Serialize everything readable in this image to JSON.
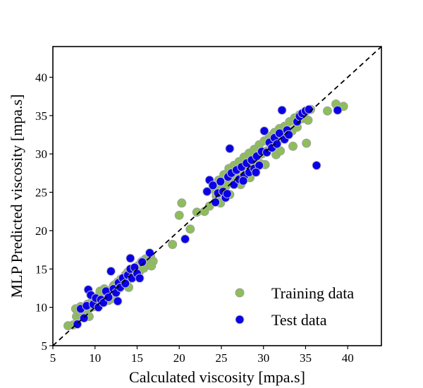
{
  "chart_data": {
    "type": "scatter",
    "title": "",
    "xlabel": "Calculated viscosity [mpa.s]",
    "ylabel": "MLP Predicted viscosity [mpa.s]",
    "xlim": [
      5,
      44
    ],
    "ylim": [
      5,
      44
    ],
    "xticks": [
      5,
      10,
      15,
      20,
      25,
      30,
      35,
      40
    ],
    "yticks": [
      5,
      10,
      15,
      20,
      25,
      30,
      35,
      40
    ],
    "grid": false,
    "legend_position": "bottom-right",
    "reference_line": {
      "style": "dashed",
      "color": "#000000",
      "from": [
        5,
        5
      ],
      "to": [
        44,
        44
      ]
    },
    "series": [
      {
        "name": "Training data",
        "color": "#8dbe5a",
        "edge_color": "#a0a0a0",
        "points": [
          [
            6.8,
            7.6
          ],
          [
            7.4,
            7.7
          ],
          [
            7.8,
            8.8
          ],
          [
            7.7,
            9.8
          ],
          [
            8.1,
            9.3
          ],
          [
            8.3,
            10.1
          ],
          [
            8.6,
            9.2
          ],
          [
            8.9,
            9.6
          ],
          [
            9.1,
            10.4
          ],
          [
            9.4,
            9.9
          ],
          [
            9.7,
            10.8
          ],
          [
            9.9,
            10.1
          ],
          [
            10.2,
            11.3
          ],
          [
            10.4,
            10.5
          ],
          [
            10.7,
            11.9
          ],
          [
            10.9,
            11.0
          ],
          [
            11.1,
            12.4
          ],
          [
            11.3,
            11.6
          ],
          [
            11.6,
            10.9
          ],
          [
            11.8,
            12.2
          ],
          [
            12.0,
            11.5
          ],
          [
            12.2,
            12.8
          ],
          [
            12.5,
            12.1
          ],
          [
            12.7,
            13.3
          ],
          [
            12.9,
            12.5
          ],
          [
            13.1,
            13.7
          ],
          [
            13.3,
            12.9
          ],
          [
            13.6,
            14.2
          ],
          [
            13.8,
            13.4
          ],
          [
            14.0,
            12.6
          ],
          [
            14.2,
            14.5
          ],
          [
            14.4,
            13.8
          ],
          [
            14.6,
            15.0
          ],
          [
            14.9,
            14.3
          ],
          [
            15.1,
            15.4
          ],
          [
            15.3,
            14.7
          ],
          [
            15.5,
            15.9
          ],
          [
            15.8,
            15.1
          ],
          [
            16.0,
            16.3
          ],
          [
            16.3,
            15.5
          ],
          [
            16.6,
            16.6
          ],
          [
            16.9,
            16.0
          ],
          [
            16.7,
            15.4
          ],
          [
            12.3,
            12.9
          ],
          [
            8.5,
            9.0
          ],
          [
            9.3,
            8.8
          ],
          [
            10.6,
            12.1
          ],
          [
            13.9,
            14.6
          ],
          [
            15.6,
            16.0
          ],
          [
            11.9,
            11.1
          ],
          [
            19.2,
            18.2
          ],
          [
            20.0,
            22.0
          ],
          [
            20.3,
            23.6
          ],
          [
            21.3,
            20.2
          ],
          [
            22.1,
            22.4
          ],
          [
            23.0,
            22.5
          ],
          [
            23.6,
            23.2
          ],
          [
            24.0,
            25.4
          ],
          [
            24.4,
            24.5
          ],
          [
            24.7,
            26.6
          ],
          [
            25.0,
            25.5
          ],
          [
            25.3,
            27.3
          ],
          [
            25.6,
            25.9
          ],
          [
            25.9,
            28.1
          ],
          [
            26.2,
            26.7
          ],
          [
            26.5,
            28.5
          ],
          [
            26.8,
            27.1
          ],
          [
            27.1,
            29.0
          ],
          [
            27.4,
            27.6
          ],
          [
            27.7,
            29.6
          ],
          [
            28.0,
            28.2
          ],
          [
            28.3,
            30.1
          ],
          [
            28.6,
            28.8
          ],
          [
            28.9,
            30.6
          ],
          [
            29.2,
            29.3
          ],
          [
            29.5,
            31.2
          ],
          [
            29.8,
            30.0
          ],
          [
            30.1,
            31.7
          ],
          [
            30.4,
            30.4
          ],
          [
            30.7,
            32.3
          ],
          [
            31.0,
            31.0
          ],
          [
            31.3,
            32.8
          ],
          [
            31.6,
            31.4
          ],
          [
            31.9,
            33.3
          ],
          [
            32.2,
            32.0
          ],
          [
            32.5,
            33.6
          ],
          [
            32.8,
            32.5
          ],
          [
            33.1,
            34.2
          ],
          [
            33.4,
            33.0
          ],
          [
            33.7,
            34.7
          ],
          [
            34.0,
            33.5
          ],
          [
            34.3,
            35.1
          ],
          [
            34.6,
            34.6
          ],
          [
            35.0,
            35.5
          ],
          [
            35.3,
            34.4
          ],
          [
            35.6,
            35.8
          ],
          [
            35.1,
            31.4
          ],
          [
            37.6,
            35.6
          ],
          [
            38.6,
            36.5
          ],
          [
            39.5,
            36.2
          ],
          [
            28.4,
            26.9
          ],
          [
            29.0,
            29.1
          ],
          [
            30.2,
            28.6
          ],
          [
            31.5,
            29.9
          ],
          [
            26.0,
            24.7
          ],
          [
            27.3,
            26.0
          ],
          [
            24.9,
            23.6
          ],
          [
            33.5,
            31.0
          ],
          [
            32.0,
            30.4
          ],
          [
            29.7,
            28.7
          ]
        ]
      },
      {
        "name": "Test data",
        "color": "#0a00e6",
        "edge_color": "#c0c0c0",
        "points": [
          [
            7.9,
            7.8
          ],
          [
            8.3,
            9.8
          ],
          [
            8.7,
            8.6
          ],
          [
            9.0,
            10.2
          ],
          [
            9.2,
            12.3
          ],
          [
            9.5,
            11.6
          ],
          [
            9.8,
            10.4
          ],
          [
            10.1,
            11.2
          ],
          [
            10.4,
            10.0
          ],
          [
            10.7,
            11.0
          ],
          [
            11.0,
            10.6
          ],
          [
            11.3,
            12.1
          ],
          [
            11.6,
            11.3
          ],
          [
            11.9,
            14.7
          ],
          [
            12.2,
            12.4
          ],
          [
            12.5,
            11.9
          ],
          [
            12.8,
            13.2
          ],
          [
            13.0,
            12.6
          ],
          [
            13.3,
            13.8
          ],
          [
            13.6,
            13.1
          ],
          [
            13.9,
            14.2
          ],
          [
            14.2,
            15.0
          ],
          [
            14.4,
            13.8
          ],
          [
            14.7,
            15.2
          ],
          [
            15.0,
            14.4
          ],
          [
            15.3,
            13.8
          ],
          [
            15.6,
            15.9
          ],
          [
            16.5,
            17.1
          ],
          [
            14.2,
            16.4
          ],
          [
            12.7,
            10.8
          ],
          [
            20.7,
            18.9
          ],
          [
            23.3,
            25.1
          ],
          [
            23.6,
            26.6
          ],
          [
            24.0,
            25.9
          ],
          [
            24.3,
            23.7
          ],
          [
            24.6,
            24.9
          ],
          [
            24.9,
            26.4
          ],
          [
            25.2,
            25.1
          ],
          [
            25.5,
            24.3
          ],
          [
            25.8,
            27.0
          ],
          [
            26.0,
            30.7
          ],
          [
            26.2,
            27.5
          ],
          [
            26.5,
            26.0
          ],
          [
            26.8,
            27.9
          ],
          [
            27.1,
            26.7
          ],
          [
            27.4,
            28.3
          ],
          [
            27.7,
            27.1
          ],
          [
            28.0,
            28.8
          ],
          [
            28.3,
            27.6
          ],
          [
            28.6,
            29.2
          ],
          [
            28.9,
            28.1
          ],
          [
            29.2,
            29.7
          ],
          [
            29.5,
            28.5
          ],
          [
            29.8,
            30.3
          ],
          [
            30.1,
            33.0
          ],
          [
            30.4,
            30.2
          ],
          [
            30.7,
            31.5
          ],
          [
            31.0,
            30.8
          ],
          [
            31.3,
            32.1
          ],
          [
            31.6,
            31.3
          ],
          [
            31.9,
            32.7
          ],
          [
            32.2,
            35.7
          ],
          [
            32.5,
            31.9
          ],
          [
            32.8,
            33.1
          ],
          [
            33.0,
            32.5
          ],
          [
            34.0,
            34.2
          ],
          [
            34.3,
            34.9
          ],
          [
            34.6,
            35.3
          ],
          [
            35.0,
            35.6
          ],
          [
            35.4,
            35.8
          ],
          [
            36.3,
            28.5
          ],
          [
            38.8,
            35.7
          ],
          [
            29.1,
            27.6
          ],
          [
            27.6,
            26.5
          ],
          [
            25.7,
            24.8
          ]
        ]
      }
    ]
  }
}
